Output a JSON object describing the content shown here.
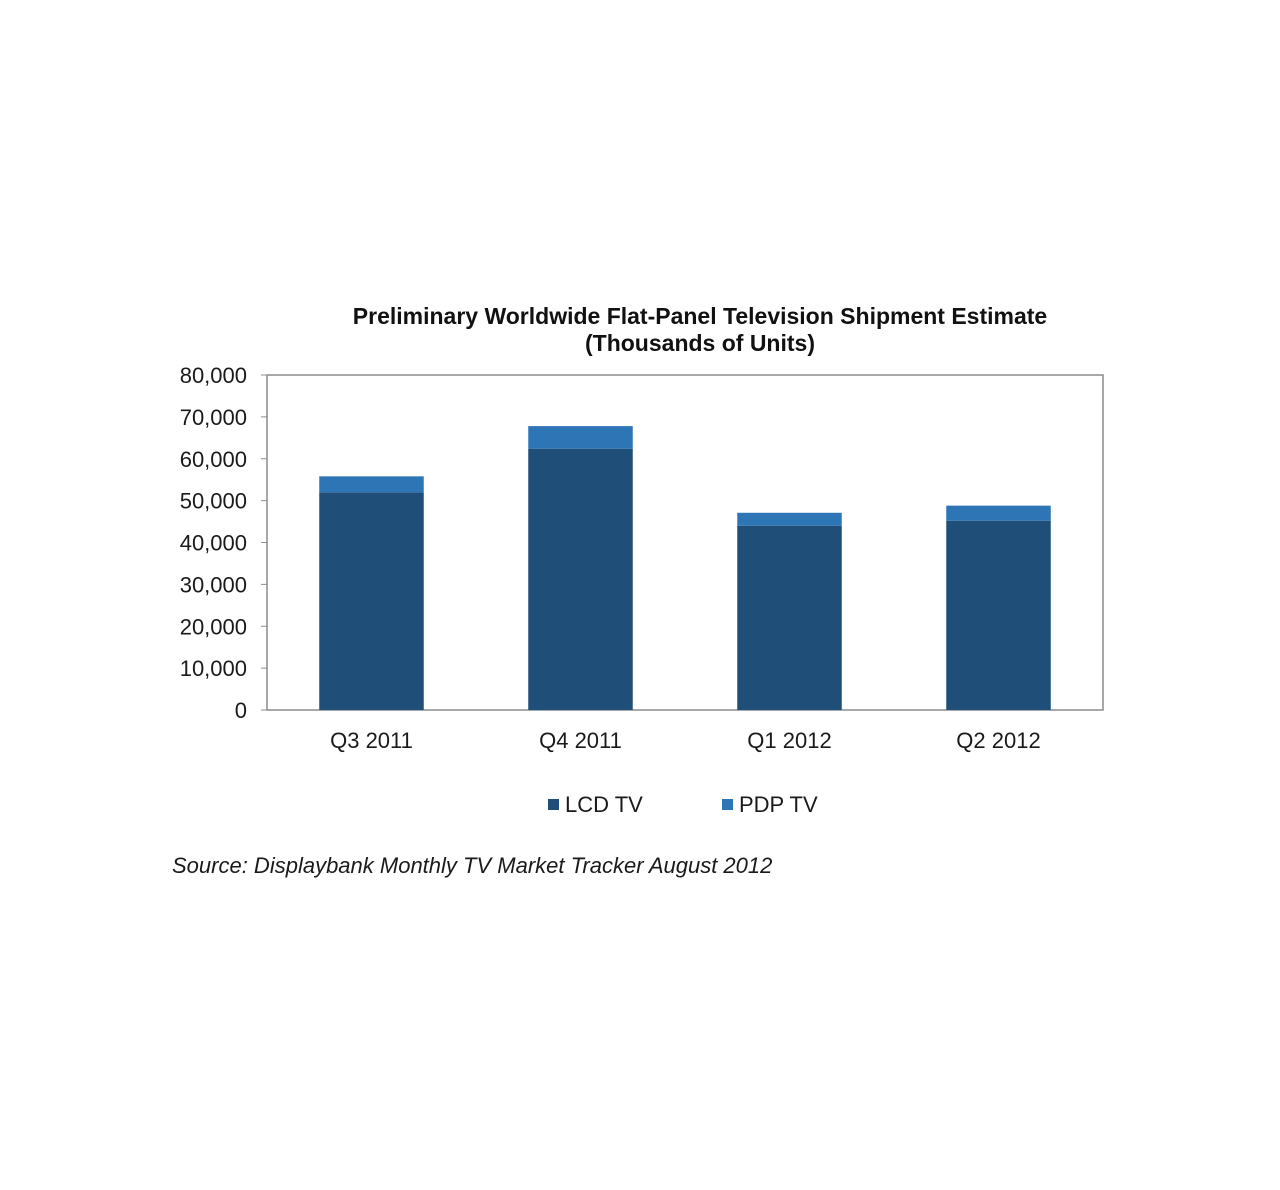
{
  "chart_data": {
    "type": "bar",
    "stacked": true,
    "title": "Preliminary Worldwide Flat-Panel Television Shipment Estimate",
    "subtitle": "(Thousands of Units)",
    "xlabel": "",
    "ylabel": "",
    "categories": [
      "Q3 2011",
      "Q4 2011",
      "Q1 2012",
      "Q2 2012"
    ],
    "series": [
      {
        "name": "LCD TV",
        "color": "#1f4e79",
        "values": [
          52000,
          62400,
          44000,
          45200
        ]
      },
      {
        "name": "PDP TV",
        "color": "#2e75b6",
        "values": [
          3800,
          5400,
          3100,
          3600
        ]
      }
    ],
    "ylim": [
      0,
      80000
    ],
    "yticks": [
      0,
      10000,
      20000,
      30000,
      40000,
      50000,
      60000,
      70000,
      80000
    ],
    "ytick_labels": [
      "0",
      "10,000",
      "20,000",
      "30,000",
      "40,000",
      "50,000",
      "60,000",
      "70,000",
      "80,000"
    ],
    "grid": false,
    "legend_position": "bottom"
  },
  "source": "Source: Displaybank Monthly TV Market Tracker August 2012"
}
